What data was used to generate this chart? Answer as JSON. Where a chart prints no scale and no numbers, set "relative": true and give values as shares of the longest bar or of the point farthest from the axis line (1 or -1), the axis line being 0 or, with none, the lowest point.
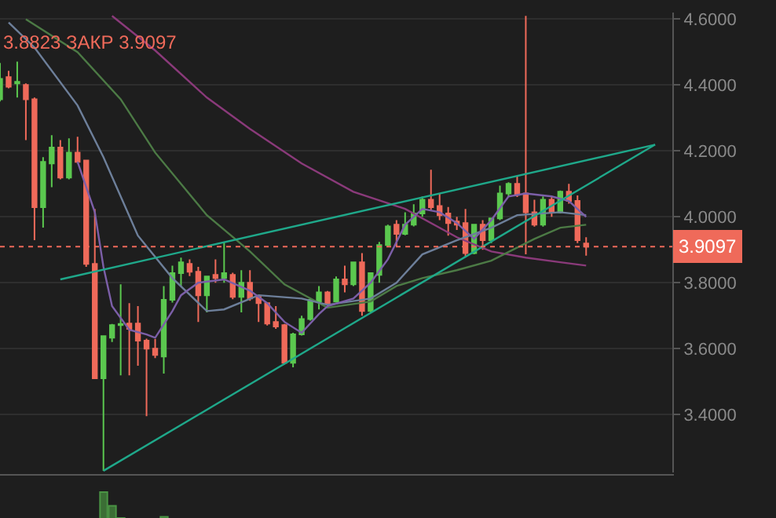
{
  "chart_data": [
    {
      "type": "candlestick",
      "categories": [
        null,
        null,
        null,
        null,
        null,
        null,
        null,
        null,
        null,
        null,
        null,
        null,
        null,
        null,
        null,
        null,
        null,
        null,
        null,
        null,
        null,
        null,
        null,
        null,
        null,
        null,
        null,
        null,
        null,
        null,
        null,
        null,
        null,
        null,
        null,
        null,
        null,
        null,
        null,
        null,
        null,
        null,
        null,
        null,
        null,
        null,
        null,
        null,
        null,
        null,
        null,
        null,
        null,
        null,
        null,
        null,
        null,
        null,
        null,
        null,
        null,
        null,
        null,
        null,
        null,
        null,
        null,
        null,
        null,
        null,
        null,
        null,
        null,
        null,
        null,
        null,
        null,
        null,
        null
      ],
      "ohlc": [
        [
          4.357,
          4.467,
          4.35,
          4.419
        ],
        [
          4.424,
          4.443,
          4.39,
          4.395
        ],
        [
          4.405,
          4.471,
          4.362,
          4.41
        ],
        [
          4.4,
          4.405,
          4.233,
          4.357
        ],
        [
          4.357,
          4.362,
          3.929,
          4.029
        ],
        [
          4.029,
          4.181,
          3.967,
          4.167
        ],
        [
          4.162,
          4.248,
          4.09,
          4.21
        ],
        [
          4.21,
          4.233,
          4.114,
          4.119
        ],
        [
          4.119,
          4.238,
          4.114,
          4.195
        ],
        [
          4.195,
          4.243,
          4.162,
          4.167
        ],
        [
          4.171,
          4.171,
          3.848,
          3.857
        ],
        [
          3.857,
          4.024,
          3.51,
          3.51
        ],
        [
          3.51,
          3.638,
          3.229,
          3.638
        ],
        [
          3.633,
          3.675,
          3.62,
          3.671
        ],
        [
          3.671,
          3.795,
          3.519,
          3.675
        ],
        [
          3.676,
          3.738,
          3.519,
          3.66
        ],
        [
          3.676,
          3.729,
          3.548,
          3.624
        ],
        [
          3.624,
          3.63,
          3.395,
          3.6
        ],
        [
          3.6,
          3.629,
          3.571,
          3.581
        ],
        [
          3.576,
          3.79,
          3.524,
          3.748
        ],
        [
          3.748,
          3.852,
          3.74,
          3.829
        ],
        [
          3.829,
          3.876,
          3.79,
          3.862
        ],
        [
          3.857,
          3.871,
          3.82,
          3.833
        ],
        [
          3.833,
          3.848,
          3.681,
          3.762
        ],
        [
          3.762,
          3.82,
          3.71,
          3.819
        ],
        [
          3.824,
          3.871,
          3.8,
          3.814
        ],
        [
          3.814,
          3.924,
          3.8,
          3.829
        ],
        [
          3.824,
          3.83,
          3.75,
          3.757
        ],
        [
          3.757,
          3.838,
          3.71,
          3.8
        ],
        [
          3.8,
          3.838,
          3.745,
          3.752
        ],
        [
          3.757,
          3.76,
          3.681,
          3.738
        ],
        [
          3.738,
          3.74,
          3.67,
          3.676
        ],
        [
          3.681,
          3.729,
          3.66,
          3.667
        ],
        [
          3.671,
          3.675,
          3.552,
          3.557
        ],
        [
          3.557,
          3.648,
          3.543,
          3.643
        ],
        [
          3.643,
          3.7,
          3.64,
          3.69
        ],
        [
          3.69,
          3.752,
          3.685,
          3.748
        ],
        [
          3.743,
          3.79,
          3.719,
          3.771
        ],
        [
          3.771,
          3.775,
          3.735,
          3.738
        ],
        [
          3.743,
          3.819,
          3.74,
          3.81
        ],
        [
          3.81,
          3.852,
          3.771,
          3.795
        ],
        [
          3.795,
          3.862,
          3.79,
          3.862
        ],
        [
          3.862,
          3.89,
          3.7,
          3.714
        ],
        [
          3.714,
          3.829,
          3.71,
          3.829
        ],
        [
          3.824,
          3.924,
          3.8,
          3.914
        ],
        [
          3.914,
          3.976,
          3.91,
          3.971
        ],
        [
          3.976,
          3.99,
          3.91,
          3.948
        ],
        [
          3.948,
          4.014,
          3.944,
          3.976
        ],
        [
          3.976,
          4.038,
          3.971,
          4.01
        ],
        [
          4.01,
          4.062,
          4.0,
          4.052
        ],
        [
          4.052,
          4.143,
          4.02,
          4.029
        ],
        [
          4.033,
          4.071,
          3.99,
          4.005
        ],
        [
          4.01,
          4.03,
          3.943,
          3.981
        ],
        [
          3.986,
          4.0,
          3.96,
          3.976
        ],
        [
          3.981,
          4.024,
          3.88,
          3.89
        ],
        [
          3.89,
          3.976,
          3.886,
          3.976
        ],
        [
          3.976,
          3.99,
          3.9,
          3.929
        ],
        [
          3.929,
          3.995,
          3.92,
          3.995
        ],
        [
          3.995,
          4.095,
          3.99,
          4.071
        ],
        [
          4.071,
          4.105,
          4.06,
          4.1
        ],
        [
          4.1,
          4.124,
          4.06,
          4.067
        ],
        [
          4.071,
          4.61,
          3.886,
          4.014
        ],
        [
          4.014,
          4.052,
          3.97,
          3.976
        ],
        [
          3.976,
          4.062,
          3.97,
          4.052
        ],
        [
          4.052,
          4.06,
          4.0,
          4.014
        ],
        [
          4.014,
          4.08,
          4.01,
          4.076
        ],
        [
          4.076,
          4.1,
          4.04,
          4.048
        ],
        [
          4.048,
          4.065,
          3.92,
          3.929
        ],
        [
          3.919,
          3.938,
          3.8823,
          3.9097
        ],
        null,
        null,
        null,
        null,
        null,
        null,
        null,
        null,
        null,
        null
      ],
      "series": [
        {
          "type": "line",
          "color": "#8a3a7a",
          "values": [
            null,
            null,
            null,
            null,
            null,
            null,
            null,
            null,
            null,
            null,
            null,
            null,
            null,
            4.61,
            null,
            null,
            null,
            null,
            4.505,
            null,
            null,
            null,
            null,
            null,
            4.362,
            null,
            null,
            null,
            null,
            4.267,
            null,
            null,
            null,
            null,
            null,
            4.162,
            null,
            null,
            null,
            null,
            null,
            4.076,
            null,
            null,
            null,
            null,
            null,
            4.024,
            null,
            null,
            null,
            null,
            null,
            3.938,
            null,
            null,
            null,
            3.895,
            null,
            null,
            null,
            3.876,
            null,
            null,
            null,
            3.862,
            null,
            null,
            3.852,
            null,
            null,
            null,
            null,
            null,
            null,
            null,
            null,
            null,
            null
          ]
        },
        {
          "type": "line",
          "color": "#4c7a45",
          "values": [
            null,
            null,
            null,
            4.6,
            null,
            null,
            null,
            null,
            null,
            4.5,
            null,
            null,
            null,
            null,
            4.357,
            null,
            null,
            null,
            4.195,
            null,
            null,
            null,
            null,
            null,
            4.005,
            null,
            null,
            null,
            null,
            3.895,
            null,
            null,
            null,
            3.795,
            null,
            null,
            null,
            null,
            3.724,
            null,
            null,
            null,
            null,
            3.743,
            null,
            null,
            3.79,
            null,
            null,
            3.814,
            null,
            null,
            null,
            3.838,
            null,
            null,
            null,
            3.867,
            null,
            null,
            null,
            null,
            3.933,
            null,
            null,
            3.967,
            null,
            null,
            3.976,
            null,
            null,
            null,
            null,
            null,
            null,
            null,
            null,
            null,
            null
          ]
        },
        {
          "type": "line",
          "color": "#6d7f9a",
          "values": [
            null,
            4.59,
            null,
            null,
            4.514,
            null,
            null,
            null,
            null,
            4.338,
            null,
            null,
            4.181,
            null,
            null,
            null,
            3.943,
            null,
            null,
            null,
            3.814,
            null,
            null,
            null,
            3.714,
            null,
            3.719,
            null,
            null,
            null,
            3.762,
            null,
            null,
            null,
            null,
            3.752,
            null,
            null,
            3.733,
            null,
            null,
            null,
            null,
            3.752,
            null,
            null,
            3.8,
            null,
            null,
            3.886,
            null,
            null,
            null,
            3.929,
            null,
            null,
            null,
            3.967,
            null,
            null,
            4.005,
            null,
            null,
            null,
            null,
            4.014,
            null,
            null,
            4.005,
            null,
            null,
            null,
            null,
            null,
            null,
            null,
            null,
            null,
            null
          ]
        },
        {
          "type": "line",
          "color": "#7c5fa8",
          "values": [
            null,
            null,
            null,
            null,
            null,
            null,
            null,
            null,
            null,
            4.167,
            null,
            4.014,
            3.848,
            3.729,
            null,
            3.657,
            null,
            3.643,
            3.633,
            null,
            3.714,
            3.762,
            null,
            3.8,
            null,
            null,
            3.81,
            null,
            null,
            3.776,
            null,
            3.738,
            null,
            3.681,
            null,
            3.648,
            null,
            3.705,
            3.729,
            null,
            null,
            3.752,
            null,
            3.8,
            null,
            3.871,
            null,
            3.976,
            null,
            4.024,
            null,
            4.014,
            null,
            3.981,
            null,
            3.933,
            null,
            3.99,
            null,
            4.062,
            null,
            4.071,
            null,
            null,
            4.062,
            null,
            4.048,
            null,
            4.0,
            null,
            null,
            null,
            null,
            null,
            null,
            null,
            null,
            null,
            null
          ]
        },
        {
          "type": "line",
          "color": "#1fa88a",
          "values": [
            null,
            null,
            null,
            null,
            null,
            null,
            null,
            3.81,
            null,
            null,
            null,
            null,
            null,
            null,
            null,
            null,
            null,
            null,
            null,
            null,
            null,
            null,
            null,
            null,
            null,
            null,
            null,
            null,
            null,
            null,
            null,
            null,
            null,
            null,
            null,
            null,
            null,
            null,
            null,
            null,
            null,
            null,
            null,
            null,
            null,
            null,
            null,
            null,
            null,
            null,
            null,
            null,
            null,
            null,
            null,
            null,
            null,
            null,
            null,
            null,
            null,
            null,
            null,
            null,
            null,
            null,
            null,
            null,
            null,
            null,
            null,
            null,
            null,
            null,
            null,
            null,
            4.219,
            null,
            null
          ]
        },
        {
          "type": "line",
          "color": "#1fa88a",
          "values": [
            null,
            null,
            null,
            null,
            null,
            null,
            null,
            null,
            null,
            null,
            null,
            null,
            3.229,
            null,
            null,
            null,
            null,
            null,
            null,
            null,
            null,
            null,
            null,
            null,
            null,
            null,
            null,
            null,
            null,
            null,
            null,
            null,
            null,
            null,
            null,
            null,
            null,
            null,
            null,
            null,
            null,
            null,
            null,
            null,
            null,
            null,
            null,
            null,
            null,
            null,
            null,
            null,
            null,
            null,
            null,
            null,
            null,
            null,
            null,
            null,
            null,
            null,
            null,
            null,
            null,
            null,
            null,
            null,
            null,
            null,
            null,
            null,
            null,
            null,
            null,
            null,
            4.219,
            null,
            null
          ]
        }
      ],
      "ylim": [
        3.224,
        4.62
      ],
      "yticks": [
        {
          "value": 3.4,
          "label": "3.4000"
        },
        {
          "value": 3.6,
          "label": "3.6000"
        },
        {
          "value": 3.8,
          "label": "3.8000"
        },
        {
          "value": 4.0,
          "label": "4.0000"
        },
        {
          "value": 4.2,
          "label": "4.2000"
        },
        {
          "value": 4.4,
          "label": "4.4000"
        },
        {
          "value": 4.6,
          "label": "4.6000"
        }
      ],
      "ref_lines": [
        {
          "axis": "y",
          "value": 3.9097,
          "label": "3.9097",
          "color": "#ef6a5a",
          "line_style": "dotted"
        }
      ],
      "annotations": [
        "3.8823 ЗАКР 3.9097"
      ],
      "grid": "y",
      "tick_labels": "y"
    },
    {
      "type": "bar",
      "relative": true,
      "color": "#3b6e35",
      "categories": [
        null,
        null,
        null,
        null,
        null,
        null,
        null,
        null,
        null,
        null,
        null,
        null,
        null,
        null,
        null,
        null,
        null,
        null,
        null,
        null,
        null,
        null,
        null,
        null,
        null,
        null,
        null,
        null,
        null,
        null,
        null,
        null,
        null,
        null,
        null,
        null,
        null,
        null,
        null,
        null,
        null,
        null,
        null,
        null,
        null,
        null,
        null,
        null,
        null,
        null,
        null,
        null,
        null,
        null,
        null,
        null,
        null,
        null,
        null,
        null,
        null,
        null,
        null,
        null,
        null,
        null,
        null,
        null,
        null,
        null,
        null,
        null,
        null,
        null,
        null,
        null,
        null,
        null,
        null
      ],
      "values": [
        null,
        null,
        null,
        null,
        null,
        null,
        null,
        null,
        null,
        null,
        null,
        null,
        1,
        0.5,
        0.06,
        null,
        null,
        null,
        null,
        0.1,
        null,
        null,
        null,
        null,
        null,
        null,
        null,
        null,
        null,
        null,
        null,
        null,
        null,
        null,
        null,
        null,
        null,
        null,
        null,
        null,
        null,
        null,
        null,
        null,
        null,
        null,
        null,
        null,
        null,
        null,
        null,
        null,
        null,
        null,
        null,
        null,
        null,
        null,
        null,
        null,
        null,
        null,
        null,
        null,
        null,
        null,
        null,
        null,
        null,
        null,
        null,
        null,
        null,
        null,
        null,
        null,
        null,
        null,
        null
      ],
      "tick_labels": false
    }
  ]
}
